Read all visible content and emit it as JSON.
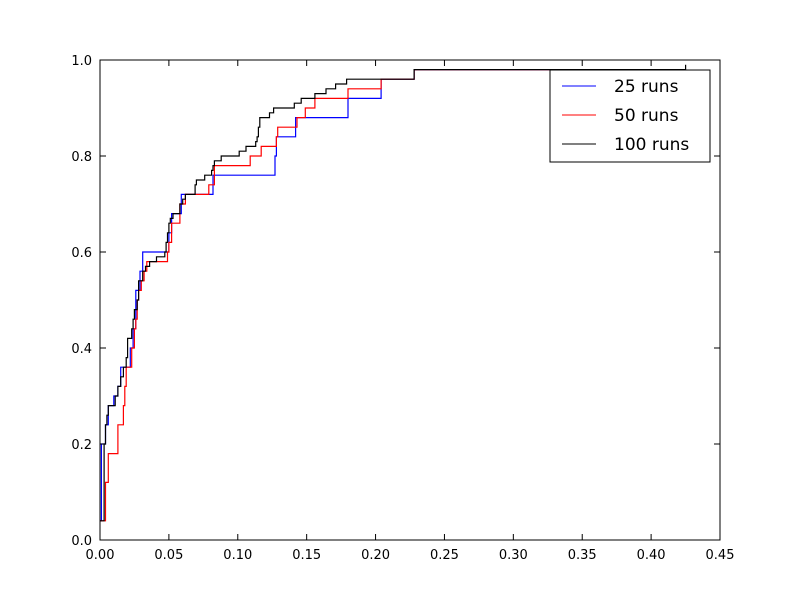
{
  "chart_data": {
    "type": "line",
    "title": "",
    "xlabel": "",
    "ylabel": "",
    "xlim": [
      0.0,
      0.45
    ],
    "ylim": [
      0.0,
      1.0
    ],
    "x_ticks": [
      "0.00",
      "0.05",
      "0.10",
      "0.15",
      "0.20",
      "0.25",
      "0.30",
      "0.35",
      "0.40",
      "0.45"
    ],
    "y_ticks": [
      "0.0",
      "0.2",
      "0.4",
      "0.6",
      "0.8",
      "1.0"
    ],
    "grid": false,
    "legend_position": "top-right",
    "step": true,
    "series": [
      {
        "name": "25 runs",
        "color": "#0000ff",
        "points": [
          [
            0.0,
            0.04
          ],
          [
            0.001,
            0.2
          ],
          [
            0.004,
            0.24
          ],
          [
            0.006,
            0.28
          ],
          [
            0.01,
            0.3
          ],
          [
            0.013,
            0.32
          ],
          [
            0.015,
            0.36
          ],
          [
            0.02,
            0.36
          ],
          [
            0.022,
            0.4
          ],
          [
            0.024,
            0.44
          ],
          [
            0.026,
            0.52
          ],
          [
            0.029,
            0.56
          ],
          [
            0.031,
            0.6
          ],
          [
            0.047,
            0.6
          ],
          [
            0.05,
            0.64
          ],
          [
            0.052,
            0.68
          ],
          [
            0.058,
            0.68
          ],
          [
            0.059,
            0.72
          ],
          [
            0.065,
            0.72
          ],
          [
            0.081,
            0.72
          ],
          [
            0.082,
            0.76
          ],
          [
            0.126,
            0.76
          ],
          [
            0.127,
            0.8
          ],
          [
            0.128,
            0.84
          ],
          [
            0.141,
            0.84
          ],
          [
            0.142,
            0.88
          ],
          [
            0.179,
            0.88
          ],
          [
            0.18,
            0.92
          ],
          [
            0.203,
            0.92
          ],
          [
            0.204,
            0.96
          ],
          [
            0.227,
            0.96
          ],
          [
            0.228,
            0.98
          ],
          [
            0.4,
            0.98
          ]
        ]
      },
      {
        "name": "50 runs",
        "color": "#ff0000",
        "points": [
          [
            0.0,
            0.04
          ],
          [
            0.002,
            0.04
          ],
          [
            0.004,
            0.12
          ],
          [
            0.006,
            0.18
          ],
          [
            0.012,
            0.18
          ],
          [
            0.013,
            0.24
          ],
          [
            0.016,
            0.24
          ],
          [
            0.017,
            0.28
          ],
          [
            0.018,
            0.32
          ],
          [
            0.019,
            0.36
          ],
          [
            0.022,
            0.36
          ],
          [
            0.023,
            0.4
          ],
          [
            0.025,
            0.44
          ],
          [
            0.026,
            0.46
          ],
          [
            0.027,
            0.5
          ],
          [
            0.028,
            0.52
          ],
          [
            0.03,
            0.54
          ],
          [
            0.032,
            0.56
          ],
          [
            0.034,
            0.58
          ],
          [
            0.047,
            0.58
          ],
          [
            0.049,
            0.6
          ],
          [
            0.05,
            0.62
          ],
          [
            0.052,
            0.66
          ],
          [
            0.057,
            0.66
          ],
          [
            0.058,
            0.7
          ],
          [
            0.062,
            0.72
          ],
          [
            0.078,
            0.72
          ],
          [
            0.079,
            0.74
          ],
          [
            0.082,
            0.74
          ],
          [
            0.083,
            0.78
          ],
          [
            0.108,
            0.78
          ],
          [
            0.109,
            0.8
          ],
          [
            0.116,
            0.8
          ],
          [
            0.117,
            0.82
          ],
          [
            0.127,
            0.82
          ],
          [
            0.128,
            0.84
          ],
          [
            0.129,
            0.86
          ],
          [
            0.142,
            0.86
          ],
          [
            0.143,
            0.88
          ],
          [
            0.148,
            0.88
          ],
          [
            0.149,
            0.9
          ],
          [
            0.155,
            0.9
          ],
          [
            0.156,
            0.92
          ],
          [
            0.179,
            0.92
          ],
          [
            0.18,
            0.94
          ],
          [
            0.203,
            0.94
          ],
          [
            0.204,
            0.96
          ],
          [
            0.227,
            0.96
          ],
          [
            0.228,
            0.98
          ],
          [
            0.4,
            0.98
          ]
        ]
      },
      {
        "name": "100 runs",
        "color": "#000000",
        "points": [
          [
            0.0,
            0.04
          ],
          [
            0.002,
            0.04
          ],
          [
            0.003,
            0.2
          ],
          [
            0.004,
            0.24
          ],
          [
            0.005,
            0.26
          ],
          [
            0.006,
            0.28
          ],
          [
            0.01,
            0.28
          ],
          [
            0.011,
            0.3
          ],
          [
            0.013,
            0.32
          ],
          [
            0.015,
            0.34
          ],
          [
            0.017,
            0.36
          ],
          [
            0.019,
            0.38
          ],
          [
            0.02,
            0.42
          ],
          [
            0.022,
            0.42
          ],
          [
            0.023,
            0.44
          ],
          [
            0.024,
            0.46
          ],
          [
            0.025,
            0.48
          ],
          [
            0.027,
            0.5
          ],
          [
            0.028,
            0.54
          ],
          [
            0.03,
            0.54
          ],
          [
            0.031,
            0.56
          ],
          [
            0.033,
            0.57
          ],
          [
            0.036,
            0.58
          ],
          [
            0.04,
            0.58
          ],
          [
            0.041,
            0.59
          ],
          [
            0.045,
            0.59
          ],
          [
            0.047,
            0.6
          ],
          [
            0.048,
            0.62
          ],
          [
            0.049,
            0.64
          ],
          [
            0.05,
            0.66
          ],
          [
            0.051,
            0.67
          ],
          [
            0.053,
            0.68
          ],
          [
            0.057,
            0.68
          ],
          [
            0.058,
            0.7
          ],
          [
            0.06,
            0.71
          ],
          [
            0.062,
            0.72
          ],
          [
            0.068,
            0.72
          ],
          [
            0.069,
            0.74
          ],
          [
            0.07,
            0.75
          ],
          [
            0.075,
            0.75
          ],
          [
            0.076,
            0.76
          ],
          [
            0.08,
            0.76
          ],
          [
            0.081,
            0.77
          ],
          [
            0.082,
            0.78
          ],
          [
            0.083,
            0.79
          ],
          [
            0.087,
            0.79
          ],
          [
            0.088,
            0.8
          ],
          [
            0.1,
            0.8
          ],
          [
            0.101,
            0.81
          ],
          [
            0.105,
            0.81
          ],
          [
            0.106,
            0.82
          ],
          [
            0.112,
            0.82
          ],
          [
            0.113,
            0.83
          ],
          [
            0.114,
            0.84
          ],
          [
            0.115,
            0.86
          ],
          [
            0.116,
            0.88
          ],
          [
            0.122,
            0.88
          ],
          [
            0.123,
            0.89
          ],
          [
            0.125,
            0.89
          ],
          [
            0.126,
            0.9
          ],
          [
            0.14,
            0.9
          ],
          [
            0.141,
            0.91
          ],
          [
            0.145,
            0.91
          ],
          [
            0.146,
            0.92
          ],
          [
            0.155,
            0.92
          ],
          [
            0.156,
            0.93
          ],
          [
            0.163,
            0.93
          ],
          [
            0.164,
            0.94
          ],
          [
            0.17,
            0.94
          ],
          [
            0.171,
            0.95
          ],
          [
            0.178,
            0.95
          ],
          [
            0.179,
            0.96
          ],
          [
            0.184,
            0.96
          ],
          [
            0.186,
            0.96
          ],
          [
            0.227,
            0.96
          ],
          [
            0.228,
            0.98
          ],
          [
            0.424,
            0.98
          ],
          [
            0.425,
            0.99
          ]
        ]
      }
    ]
  }
}
